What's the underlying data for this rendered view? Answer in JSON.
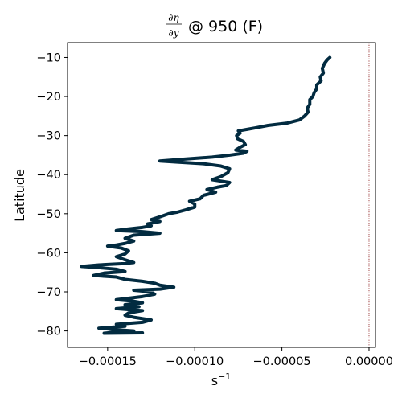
{
  "chart_data": {
    "type": "line",
    "title": {
      "frac_numerator": "∂η",
      "frac_denominator": "∂y",
      "text": "@ 950 (F)"
    },
    "xlabel": "s",
    "xlabel_exponent": "−1",
    "ylabel": "Latitude",
    "xlim": [
      -0.000173,
      3.7e-06
    ],
    "ylim": [
      -84.2,
      -6.2
    ],
    "xticks": [
      {
        "value": -0.00015,
        "label": "−0.00015"
      },
      {
        "value": -0.0001,
        "label": "−0.00010"
      },
      {
        "value": -5e-05,
        "label": "−0.00005"
      },
      {
        "value": 0.0,
        "label": "0.00000"
      }
    ],
    "yticks": [
      {
        "value": -10,
        "label": "−10"
      },
      {
        "value": -20,
        "label": "−20"
      },
      {
        "value": -30,
        "label": "−30"
      },
      {
        "value": -40,
        "label": "−40"
      },
      {
        "value": -50,
        "label": "−50"
      },
      {
        "value": -60,
        "label": "−60"
      },
      {
        "value": -70,
        "label": "−70"
      },
      {
        "value": -80,
        "label": "−80"
      }
    ],
    "grid": false,
    "reference_line": {
      "x": 0.0,
      "color": "#8b1a1a",
      "style": "dotted"
    },
    "series": [
      {
        "color": "#022b40",
        "points": [
          [
            -2.25e-05,
            -10.0
          ],
          [
            -2.4e-05,
            -10.6
          ],
          [
            -2.55e-05,
            -11.5
          ],
          [
            -2.68e-05,
            -12.8
          ],
          [
            -2.62e-05,
            -14.0
          ],
          [
            -2.8e-05,
            -15.0
          ],
          [
            -2.75e-05,
            -16.0
          ],
          [
            -3e-05,
            -17.0
          ],
          [
            -3e-05,
            -18.0
          ],
          [
            -3.15e-05,
            -19.0
          ],
          [
            -3.22e-05,
            -20.0
          ],
          [
            -3.4e-05,
            -20.8
          ],
          [
            -3.4e-05,
            -22.0
          ],
          [
            -3.55e-05,
            -23.0
          ],
          [
            -3.5e-05,
            -24.0
          ],
          [
            -3.7e-05,
            -25.0
          ],
          [
            -4e-05,
            -26.0
          ],
          [
            -4.7e-05,
            -26.8
          ],
          [
            -5.8e-05,
            -27.4
          ],
          [
            -6.5e-05,
            -28.0
          ],
          [
            -7e-05,
            -28.4
          ],
          [
            -7.5e-05,
            -28.8
          ],
          [
            -7.4e-05,
            -29.4
          ],
          [
            -7.6e-05,
            -30.0
          ],
          [
            -7.55e-05,
            -30.8
          ],
          [
            -7.2e-05,
            -31.5
          ],
          [
            -7.1e-05,
            -32.3
          ],
          [
            -7.4e-05,
            -33.0
          ],
          [
            -7.65e-05,
            -33.7
          ],
          [
            -7e-05,
            -34.0
          ],
          [
            -7.2e-05,
            -34.5
          ],
          [
            -8e-05,
            -35.0
          ],
          [
            -9e-05,
            -35.5
          ],
          [
            -0.000105,
            -36.0
          ],
          [
            -0.00012,
            -36.5
          ],
          [
            -0.00011,
            -36.8
          ],
          [
            -9.5e-05,
            -37.2
          ],
          [
            -8.5e-05,
            -37.8
          ],
          [
            -8e-05,
            -38.5
          ],
          [
            -8.1e-05,
            -39.5
          ],
          [
            -8.5e-05,
            -40.5
          ],
          [
            -9e-05,
            -41.3
          ],
          [
            -8e-05,
            -42.0
          ],
          [
            -8.2e-05,
            -42.8
          ],
          [
            -8.7e-05,
            -43.2
          ],
          [
            -9.3e-05,
            -43.8
          ],
          [
            -8.8e-05,
            -44.5
          ],
          [
            -9.5e-05,
            -45.3
          ],
          [
            -9.7e-05,
            -46.2
          ],
          [
            -0.000103,
            -46.8
          ],
          [
            -0.0001,
            -47.5
          ],
          [
            -0.0001,
            -48.3
          ],
          [
            -0.000105,
            -49.0
          ],
          [
            -0.00011,
            -49.6
          ],
          [
            -0.000115,
            -50.0
          ],
          [
            -0.00012,
            -50.8
          ],
          [
            -0.000125,
            -51.5
          ],
          [
            -0.00012,
            -52.0
          ],
          [
            -0.000127,
            -52.6
          ],
          [
            -0.000125,
            -53.1
          ],
          [
            -0.00013,
            -53.5
          ],
          [
            -0.00014,
            -54.0
          ],
          [
            -0.000145,
            -54.3
          ],
          [
            -0.00013,
            -54.6
          ],
          [
            -0.00012,
            -55.0
          ],
          [
            -0.000135,
            -55.5
          ],
          [
            -0.00014,
            -56.3
          ],
          [
            -0.000135,
            -57.0
          ],
          [
            -0.00014,
            -57.6
          ],
          [
            -0.000145,
            -58.0
          ],
          [
            -0.00015,
            -58.3
          ],
          [
            -0.000142,
            -58.8
          ],
          [
            -0.000138,
            -59.5
          ],
          [
            -0.00014,
            -60.3
          ],
          [
            -0.000145,
            -61.0
          ],
          [
            -0.00014,
            -61.8
          ],
          [
            -0.000135,
            -62.5
          ],
          [
            -0.000142,
            -62.8
          ],
          [
            -0.000155,
            -63.1
          ],
          [
            -0.000165,
            -63.5
          ],
          [
            -0.000155,
            -63.8
          ],
          [
            -0.000145,
            -64.2
          ],
          [
            -0.00014,
            -64.8
          ],
          [
            -0.000152,
            -65.2
          ],
          [
            -0.000158,
            -65.8
          ],
          [
            -0.000145,
            -66.2
          ],
          [
            -0.00014,
            -66.8
          ],
          [
            -0.00013,
            -67.3
          ],
          [
            -0.000123,
            -67.8
          ],
          [
            -0.00012,
            -68.3
          ],
          [
            -0.000112,
            -68.8
          ],
          [
            -0.00012,
            -69.3
          ],
          [
            -0.000135,
            -69.6
          ],
          [
            -0.000125,
            -70.0
          ],
          [
            -0.000123,
            -70.6
          ],
          [
            -0.00013,
            -71.2
          ],
          [
            -0.000145,
            -72.0
          ],
          [
            -0.000135,
            -72.4
          ],
          [
            -0.00013,
            -72.8
          ],
          [
            -0.00014,
            -73.3
          ],
          [
            -0.000132,
            -73.8
          ],
          [
            -0.000145,
            -74.3
          ],
          [
            -0.00013,
            -74.8
          ],
          [
            -0.000138,
            -75.4
          ],
          [
            -0.00014,
            -76.0
          ],
          [
            -0.000135,
            -76.5
          ],
          [
            -0.000125,
            -77.2
          ],
          [
            -0.00013,
            -77.8
          ],
          [
            -0.000145,
            -78.3
          ],
          [
            -0.00014,
            -78.8
          ],
          [
            -0.000155,
            -79.3
          ],
          [
            -0.000145,
            -79.7
          ],
          [
            -0.000135,
            -80.0
          ],
          [
            -0.000145,
            -80.3
          ],
          [
            -0.000152,
            -80.6
          ],
          [
            -0.00013,
            -80.5
          ]
        ]
      }
    ]
  }
}
